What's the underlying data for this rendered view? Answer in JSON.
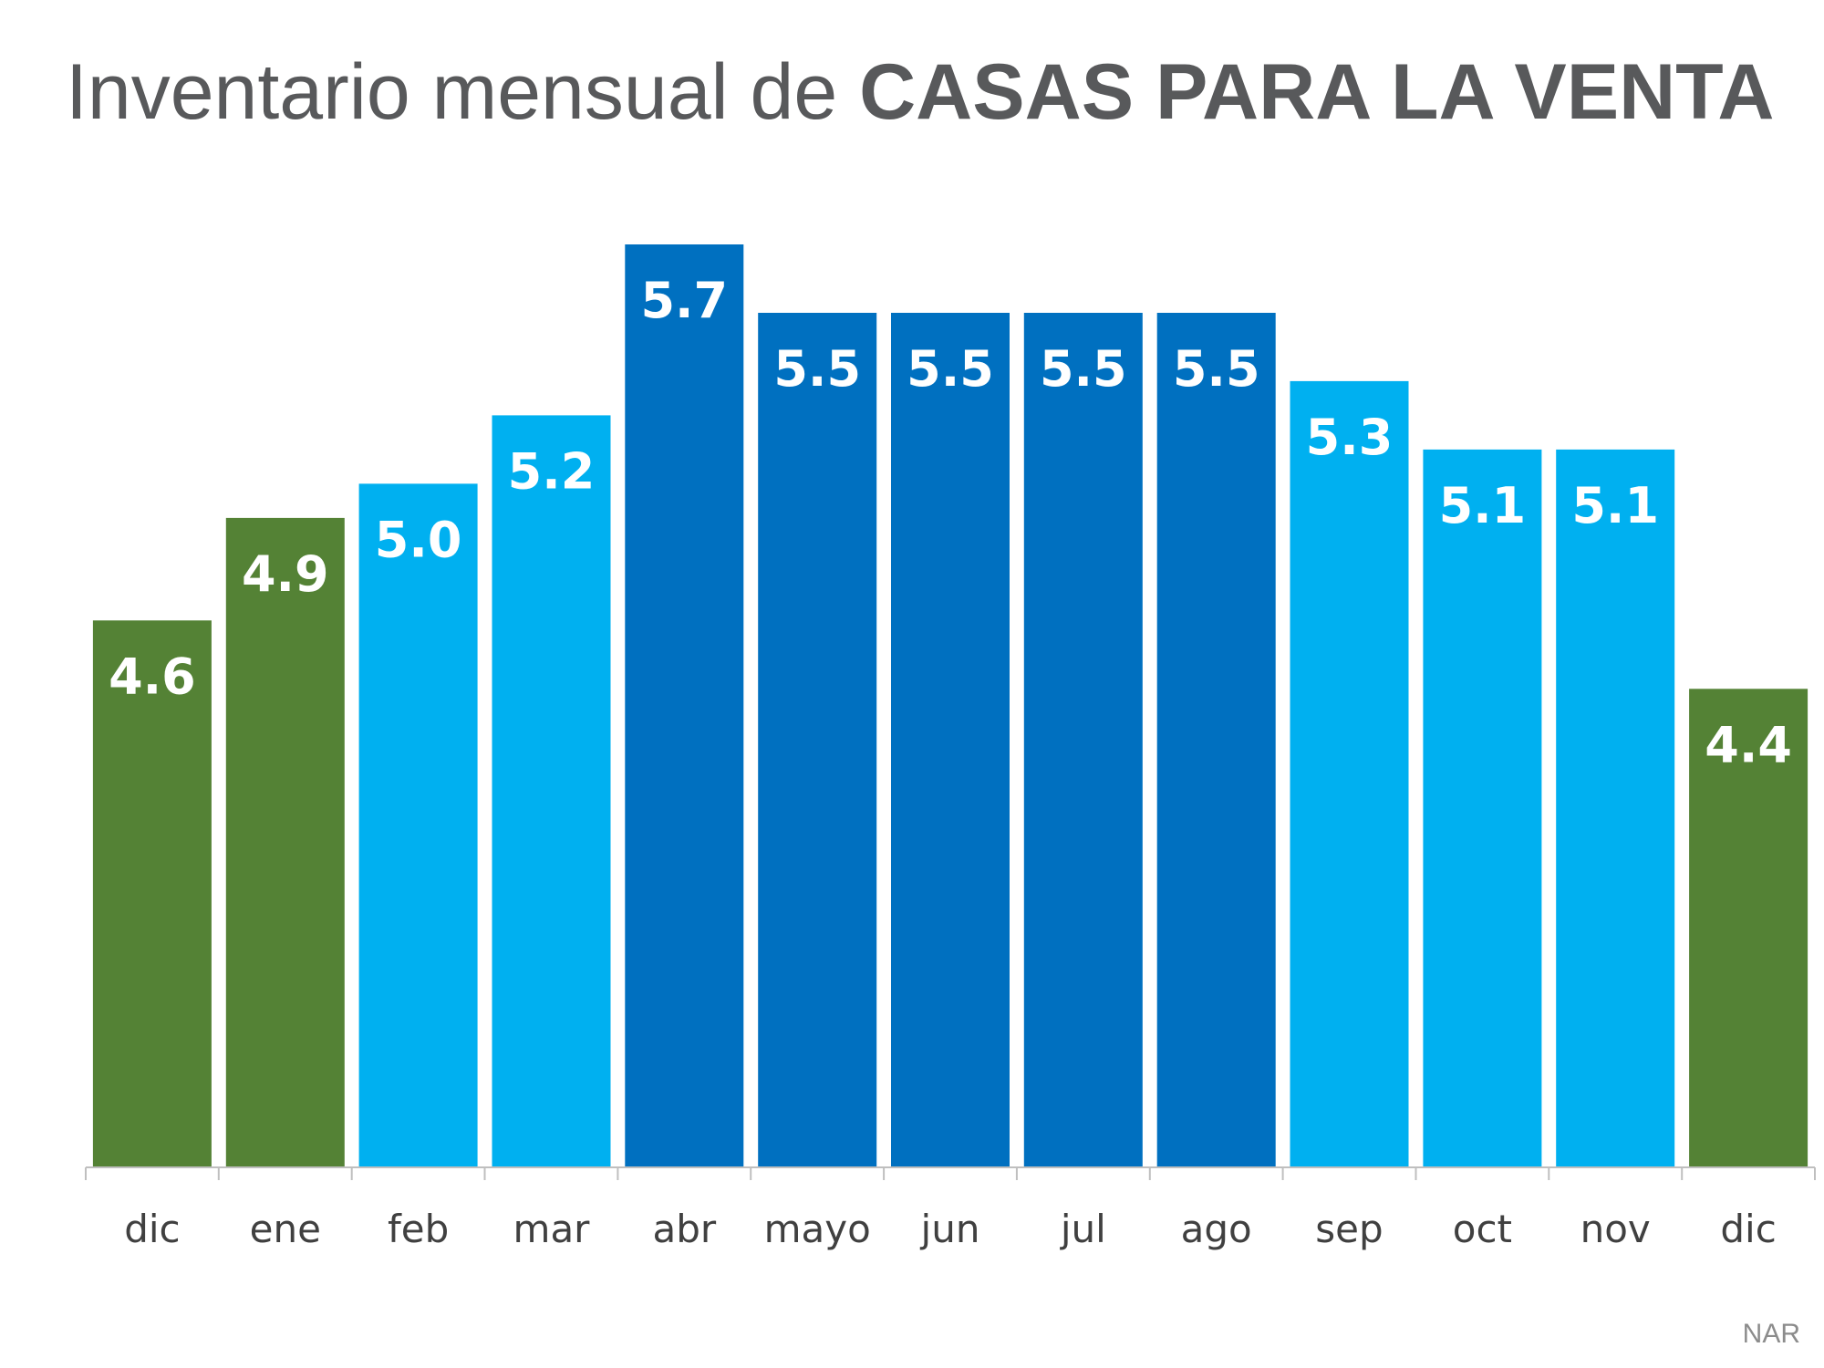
{
  "title": {
    "normal": "Inventario mensual de ",
    "bold": "CASAS PARA LA VENTA"
  },
  "source": "NAR",
  "colors": {
    "green": "#548235",
    "light_blue": "#00b0f0",
    "dark_blue": "#0070c0",
    "title_text": "#58595b",
    "axis": "#bfbfbf",
    "label_text": "#404040",
    "value_text": "#ffffff",
    "source_text": "#8c8c8c"
  },
  "chart_data": {
    "type": "bar",
    "title": "Inventario mensual de CASAS PARA LA VENTA",
    "xlabel": "",
    "ylabel": "",
    "ylim": [
      3,
      5.8
    ],
    "grid": false,
    "legend": "none",
    "categories": [
      "dic",
      "ene",
      "feb",
      "mar",
      "abr",
      "mayo",
      "jun",
      "jul",
      "ago",
      "sep",
      "oct",
      "nov",
      "dic"
    ],
    "values": [
      4.6,
      4.9,
      5.0,
      5.2,
      5.7,
      5.5,
      5.5,
      5.5,
      5.5,
      5.3,
      5.1,
      5.1,
      4.4
    ],
    "value_labels": [
      "4.6",
      "4.9",
      "5.0",
      "5.2",
      "5.7",
      "5.5",
      "5.5",
      "5.5",
      "5.5",
      "5.3",
      "5.1",
      "5.1",
      "4.4"
    ],
    "bar_colors": [
      "green",
      "green",
      "light_blue",
      "light_blue",
      "dark_blue",
      "dark_blue",
      "dark_blue",
      "dark_blue",
      "dark_blue",
      "light_blue",
      "light_blue",
      "light_blue",
      "green"
    ]
  }
}
